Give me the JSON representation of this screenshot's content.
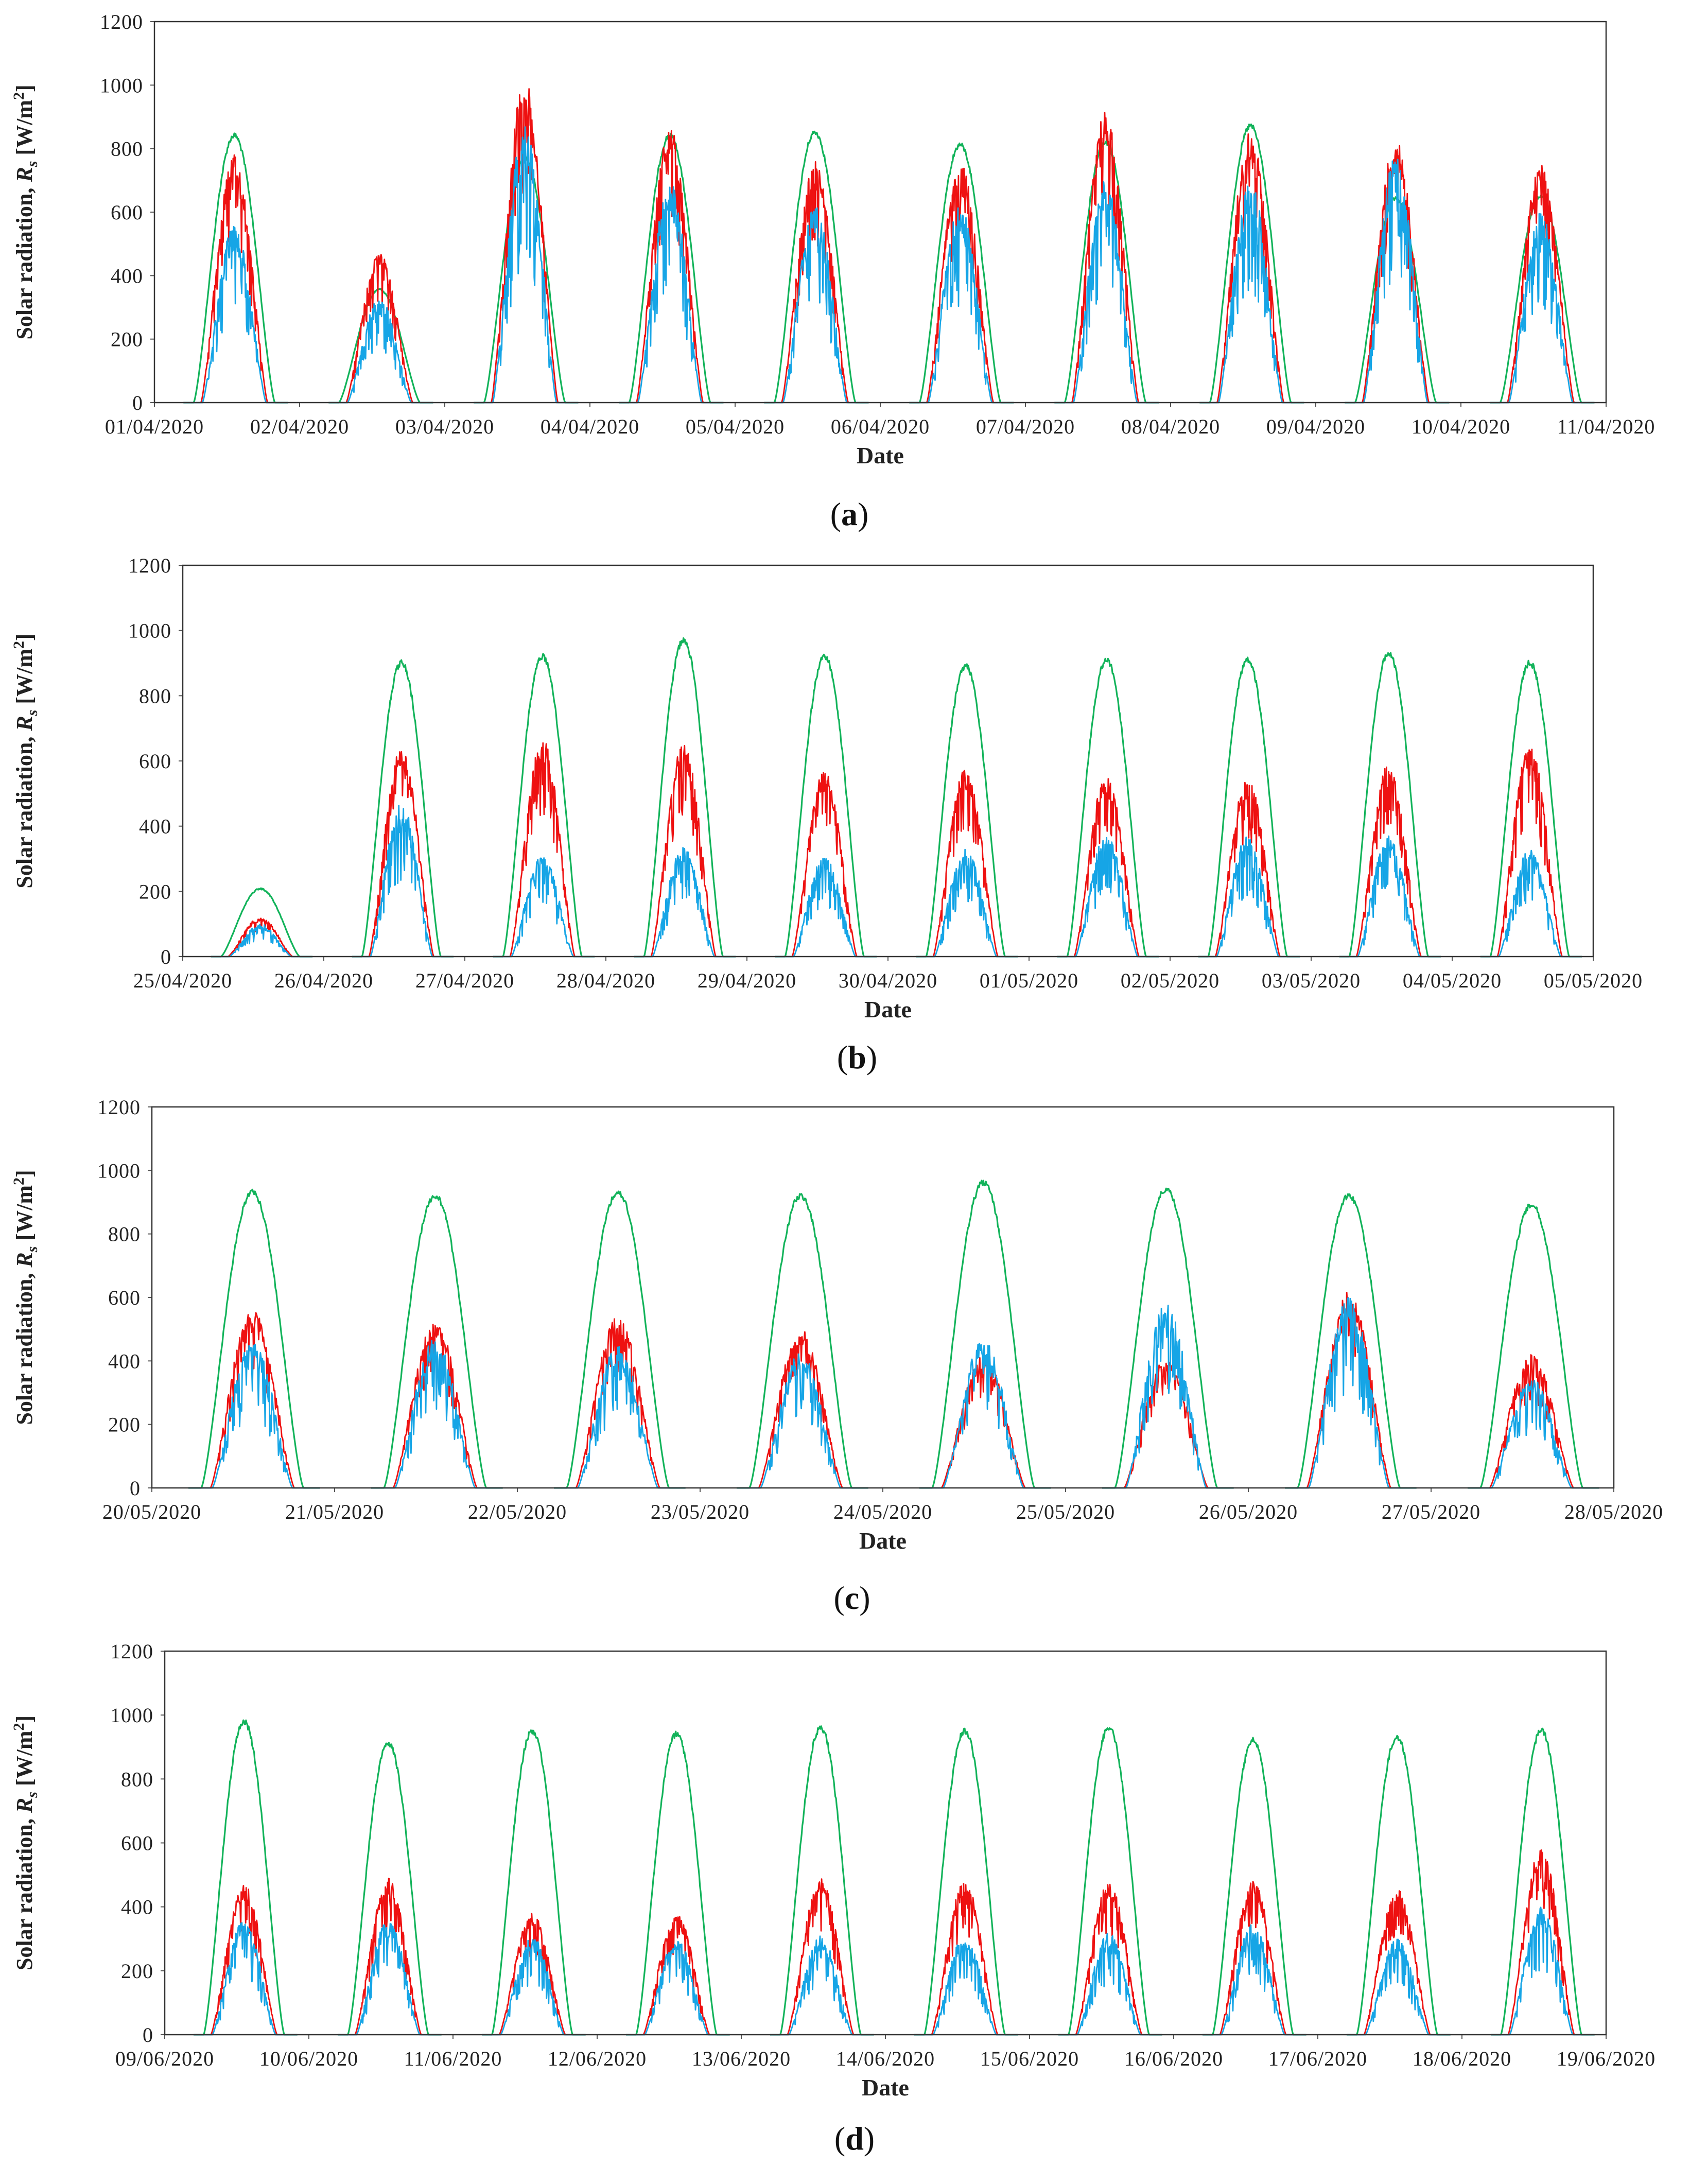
{
  "chart_data": [
    {
      "panel": "a",
      "type": "line",
      "caption": {
        "open": "(",
        "letter": "a",
        "close": ")"
      },
      "xlabel": "Date",
      "ylabel": {
        "prefix": "Solar radiation, ",
        "symbol": "R",
        "sub": "s",
        "unit": " [W/m",
        "sup": "2",
        "close": "]"
      },
      "ylim": [
        0,
        1200
      ],
      "yticks": [
        "0",
        "200",
        "400",
        "600",
        "800",
        "1000",
        "1200"
      ],
      "xticks": [
        "01/04/2020",
        "02/04/2020",
        "03/04/2020",
        "04/04/2020",
        "05/04/2020",
        "06/04/2020",
        "07/04/2020",
        "08/04/2020",
        "09/04/2020",
        "10/04/2020",
        "11/04/2020"
      ],
      "days": [
        {
          "green": 850,
          "red": 780,
          "blue": 560
        },
        {
          "green": 360,
          "red": 470,
          "blue": 330
        },
        {
          "green": 780,
          "red": 1020,
          "blue": 880
        },
        {
          "green": 850,
          "red": 870,
          "blue": 700
        },
        {
          "green": 860,
          "red": 760,
          "blue": 620
        },
        {
          "green": 820,
          "red": 760,
          "blue": 620
        },
        {
          "green": 830,
          "red": 920,
          "blue": 700
        },
        {
          "green": 880,
          "red": 860,
          "blue": 700
        },
        {
          "green": 650,
          "red": 830,
          "blue": 780
        },
        {
          "green": 660,
          "red": 750,
          "blue": 600
        }
      ],
      "series_colors": {
        "green": "#12b35a",
        "red": "#ee1111",
        "blue": "#16a5e6"
      }
    },
    {
      "panel": "b",
      "type": "line",
      "caption": {
        "open": "(",
        "letter": "b",
        "close": ")"
      },
      "xlabel": "Date",
      "ylabel": {
        "prefix": "Solar radiation, ",
        "symbol": "R",
        "sub": "s",
        "unit": " [W/m",
        "sup": "2",
        "close": "]"
      },
      "ylim": [
        0,
        1200
      ],
      "yticks": [
        "0",
        "200",
        "400",
        "600",
        "800",
        "1000",
        "1200"
      ],
      "xticks": [
        "25/04/2020",
        "26/04/2020",
        "27/04/2020",
        "28/04/2020",
        "29/04/2020",
        "30/04/2020",
        "01/05/2020",
        "02/05/2020",
        "03/05/2020",
        "04/05/2020",
        "05/05/2020"
      ],
      "days": [
        {
          "green": 210,
          "red": 120,
          "blue": 100
        },
        {
          "green": 910,
          "red": 640,
          "blue": 470
        },
        {
          "green": 930,
          "red": 670,
          "blue": 310
        },
        {
          "green": 980,
          "red": 650,
          "blue": 340
        },
        {
          "green": 930,
          "red": 570,
          "blue": 310
        },
        {
          "green": 900,
          "red": 580,
          "blue": 330
        },
        {
          "green": 920,
          "red": 560,
          "blue": 380
        },
        {
          "green": 920,
          "red": 550,
          "blue": 370
        },
        {
          "green": 940,
          "red": 590,
          "blue": 370
        },
        {
          "green": 910,
          "red": 650,
          "blue": 330
        }
      ],
      "series_colors": {
        "green": "#12b35a",
        "red": "#ee1111",
        "blue": "#16a5e6"
      }
    },
    {
      "panel": "c",
      "type": "line",
      "caption": {
        "open": "(",
        "letter": "c",
        "close": ")"
      },
      "xlabel": "Date",
      "ylabel": {
        "prefix": "Solar radiation, ",
        "symbol": "R",
        "sub": "s",
        "unit": " [W/m",
        "sup": "2",
        "close": "]"
      },
      "ylim": [
        0,
        1200
      ],
      "yticks": [
        "0",
        "200",
        "400",
        "600",
        "800",
        "1000",
        "1200"
      ],
      "xticks": [
        "20/05/2020",
        "21/05/2020",
        "22/05/2020",
        "23/05/2020",
        "24/05/2020",
        "25/05/2020",
        "26/05/2020",
        "27/05/2020",
        "28/05/2020"
      ],
      "days": [
        {
          "green": 940,
          "red": 570,
          "blue": 470
        },
        {
          "green": 930,
          "red": 530,
          "blue": 470
        },
        {
          "green": 940,
          "red": 540,
          "blue": 450
        },
        {
          "green": 930,
          "red": 500,
          "blue": 430
        },
        {
          "green": 970,
          "red": 420,
          "blue": 470
        },
        {
          "green": 950,
          "red": 410,
          "blue": 580
        },
        {
          "green": 930,
          "red": 620,
          "blue": 600
        },
        {
          "green": 900,
          "red": 420,
          "blue": 350
        }
      ],
      "series_colors": {
        "green": "#12b35a",
        "red": "#ee1111",
        "blue": "#16a5e6"
      }
    },
    {
      "panel": "d",
      "type": "line",
      "caption": {
        "open": "(",
        "letter": "d",
        "close": ")"
      },
      "xlabel": "Date",
      "ylabel": {
        "prefix": "Solar radiation, ",
        "symbol": "R",
        "sub": "s",
        "unit": " [W/m",
        "sup": "2",
        "close": "]"
      },
      "ylim": [
        0,
        1200
      ],
      "yticks": [
        "0",
        "200",
        "400",
        "600",
        "800",
        "1000",
        "1200"
      ],
      "xticks": [
        "09/06/2020",
        "10/06/2020",
        "11/06/2020",
        "12/06/2020",
        "13/06/2020",
        "14/06/2020",
        "15/06/2020",
        "16/06/2020",
        "17/06/2020",
        "18/06/2020",
        "19/06/2020"
      ],
      "days": [
        {
          "green": 990,
          "red": 470,
          "blue": 360
        },
        {
          "green": 920,
          "red": 490,
          "blue": 360
        },
        {
          "green": 960,
          "red": 380,
          "blue": 310
        },
        {
          "green": 950,
          "red": 380,
          "blue": 300
        },
        {
          "green": 970,
          "red": 490,
          "blue": 310
        },
        {
          "green": 960,
          "red": 480,
          "blue": 310
        },
        {
          "green": 970,
          "red": 480,
          "blue": 320
        },
        {
          "green": 930,
          "red": 480,
          "blue": 350
        },
        {
          "green": 940,
          "red": 460,
          "blue": 300
        },
        {
          "green": 960,
          "red": 590,
          "blue": 400
        }
      ],
      "series_colors": {
        "green": "#12b35a",
        "red": "#ee1111",
        "blue": "#16a5e6"
      }
    }
  ]
}
